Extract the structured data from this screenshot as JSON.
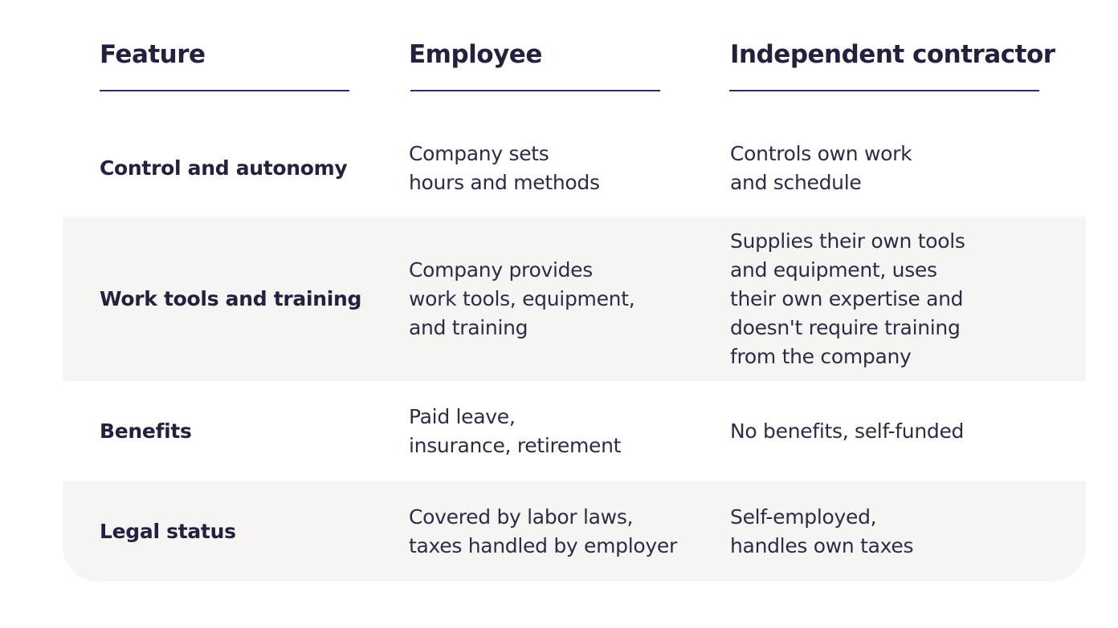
{
  "table": {
    "headers": [
      "Feature",
      "Employee",
      "Independent contractor"
    ],
    "rows": [
      [
        [
          "Control and autonomy"
        ],
        [
          "Company sets",
          "hours and methods"
        ],
        [
          "Controls own work",
          "and schedule"
        ]
      ],
      [
        [
          "Work tools and training"
        ],
        [
          "Company provides",
          "work tools, equipment,",
          "and training"
        ],
        [
          "Supplies their own tools",
          "and equipment, uses",
          "their own expertise and",
          "doesn't require training",
          "from the company"
        ]
      ],
      [
        [
          "Benefits"
        ],
        [
          "Paid leave,",
          "insurance, retirement"
        ],
        [
          "No benefits, self-funded"
        ]
      ],
      [
        [
          "Legal status"
        ],
        [
          "Covered by labor laws,",
          "taxes handled by employer"
        ],
        [
          "Self-employed,",
          "handles own taxes"
        ]
      ]
    ]
  }
}
